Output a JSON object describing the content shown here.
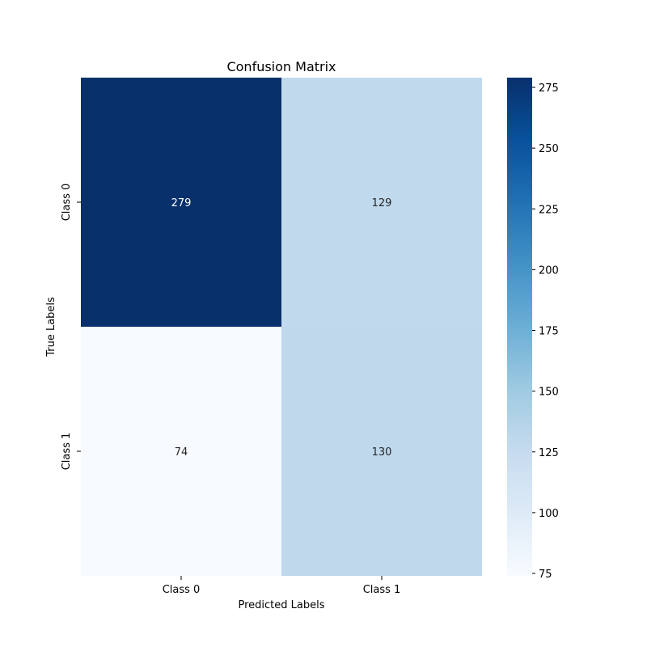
{
  "chart_data": {
    "type": "heatmap",
    "title": "Confusion Matrix",
    "xlabel": "Predicted Labels",
    "ylabel": "True Labels",
    "x_categories": [
      "Class 0",
      "Class 1"
    ],
    "y_categories": [
      "Class 0",
      "Class 1"
    ],
    "values": [
      [
        279,
        129
      ],
      [
        74,
        130
      ]
    ],
    "colormap": "Blues",
    "color_range": [
      74,
      279
    ],
    "colorbar_ticks": [
      75,
      100,
      125,
      150,
      175,
      200,
      225,
      250,
      275
    ],
    "legend": "colorbar-right",
    "grid": false
  }
}
